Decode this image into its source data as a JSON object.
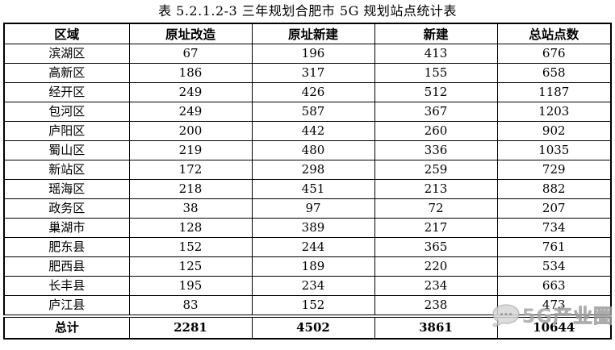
{
  "title": "表 5.2.1.2-3 三年规划合肥市 5G 规划站点统计表",
  "table": {
    "headers": [
      "区域",
      "原址改造",
      "原址新建",
      "新建",
      "总站点数"
    ],
    "rows": [
      {
        "region": "滨湖区",
        "values": [
          "67",
          "196",
          "413",
          "676"
        ]
      },
      {
        "region": "高新区",
        "values": [
          "186",
          "317",
          "155",
          "658"
        ]
      },
      {
        "region": "经开区",
        "values": [
          "249",
          "426",
          "512",
          "1187"
        ]
      },
      {
        "region": "包河区",
        "values": [
          "249",
          "587",
          "367",
          "1203"
        ]
      },
      {
        "region": "庐阳区",
        "values": [
          "200",
          "442",
          "260",
          "902"
        ]
      },
      {
        "region": "蜀山区",
        "values": [
          "219",
          "480",
          "336",
          "1035"
        ]
      },
      {
        "region": "新站区",
        "values": [
          "172",
          "298",
          "259",
          "729"
        ]
      },
      {
        "region": "瑶海区",
        "values": [
          "218",
          "451",
          "213",
          "882"
        ]
      },
      {
        "region": "政务区",
        "values": [
          "38",
          "97",
          "72",
          "207"
        ]
      },
      {
        "region": "巢湖市",
        "values": [
          "128",
          "389",
          "217",
          "734"
        ]
      },
      {
        "region": "肥东县",
        "values": [
          "152",
          "244",
          "365",
          "761"
        ]
      },
      {
        "region": "肥西县",
        "values": [
          "125",
          "189",
          "220",
          "534"
        ]
      },
      {
        "region": "长丰县",
        "values": [
          "195",
          "234",
          "234",
          "663"
        ]
      },
      {
        "region": "庐江县",
        "values": [
          "83",
          "152",
          "238",
          "473"
        ]
      }
    ],
    "total": {
      "label": "总计",
      "values": [
        "2281",
        "4502",
        "3861",
        "10644"
      ]
    }
  },
  "watermark": {
    "prefix": "5G",
    "suffix": "产业圈",
    "icon": "chat-bubble-icon",
    "color": "#a6a6a6"
  }
}
